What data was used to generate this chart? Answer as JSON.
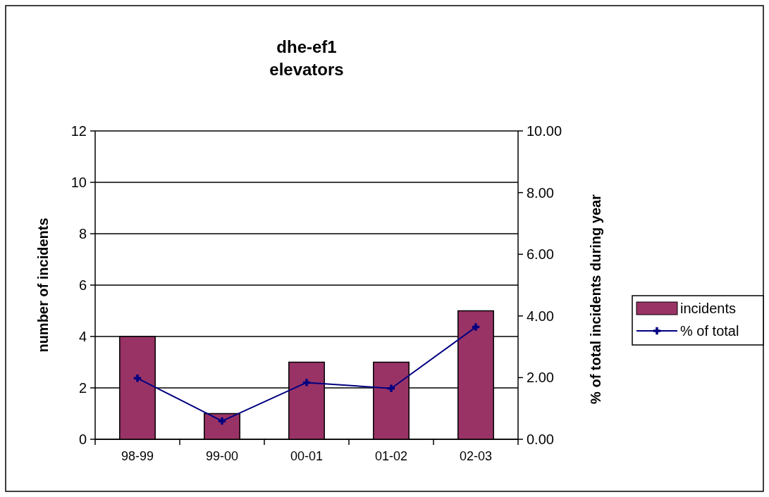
{
  "chart_data": {
    "type": "bar",
    "title": "dhe-ef1\nelevators",
    "ylabel": "number of incidents",
    "y2label": "% of total incidents during year",
    "categories": [
      "98-99",
      "99-00",
      "00-01",
      "01-02",
      "02-03"
    ],
    "series": [
      {
        "name": "incidents",
        "type": "bar",
        "color": "#993366",
        "values": [
          4,
          1,
          3,
          3,
          5
        ]
      },
      {
        "name": "% of total",
        "type": "line",
        "axis": "y2",
        "color": "#000080",
        "marker": "cross",
        "values": [
          1.98,
          0.59,
          1.84,
          1.65,
          3.64
        ]
      }
    ],
    "ylim": [
      0,
      12
    ],
    "yticks": [
      0,
      2,
      4,
      6,
      8,
      10,
      12
    ],
    "y2lim": [
      0,
      10
    ],
    "y2ticks": [
      {
        "value": 0,
        "label": "0.00"
      },
      {
        "value": 2,
        "label": "2.00"
      },
      {
        "value": 4,
        "label": "4.00"
      },
      {
        "value": 6,
        "label": "6.00"
      },
      {
        "value": 8,
        "label": "8.00"
      },
      {
        "value": 10,
        "label": "10.00"
      }
    ],
    "grid": "y",
    "legend": "right"
  }
}
